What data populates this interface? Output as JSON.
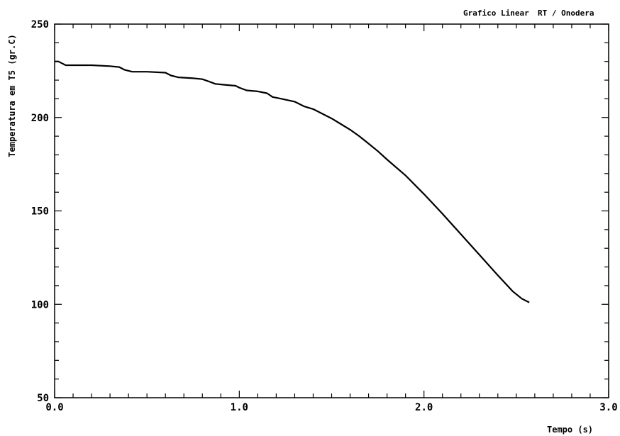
{
  "header": {
    "chart_title": "Grafico Linear",
    "author": "RT / Onodera"
  },
  "chart_data": {
    "type": "line",
    "title": "Grafico Linear",
    "xlabel": "Tempo (s)",
    "ylabel": "Temperatura em T5 (gr.C)",
    "xlim": [
      0.0,
      3.0
    ],
    "ylim": [
      50,
      250
    ],
    "x_tick_labels": [
      "0.0",
      "1.0",
      "2.0",
      "3.0"
    ],
    "y_tick_labels": [
      "50",
      "100",
      "150",
      "200",
      "250"
    ],
    "x_ticks": [
      0,
      1,
      2,
      3
    ],
    "y_ticks": [
      50,
      100,
      150,
      200,
      250
    ],
    "x_minor_step": 0.1,
    "y_minor_step": 10,
    "grid": false,
    "line_color": "#000000",
    "series": [
      {
        "x": [
          0.0,
          0.02,
          0.04,
          0.06,
          0.1,
          0.2,
          0.3,
          0.35,
          0.38,
          0.42,
          0.5,
          0.6,
          0.63,
          0.67,
          0.75,
          0.8,
          0.83,
          0.87,
          0.92,
          0.98,
          1.0,
          1.04,
          1.1,
          1.15,
          1.18,
          1.23,
          1.3,
          1.35,
          1.4,
          1.45,
          1.5,
          1.55,
          1.6,
          1.65,
          1.7,
          1.75,
          1.8,
          1.9,
          2.0,
          2.1,
          2.2,
          2.3,
          2.4,
          2.48,
          2.53,
          2.57
        ],
        "y": [
          230,
          230,
          229,
          228,
          228,
          228,
          227.5,
          227,
          225.5,
          224.5,
          224.5,
          224,
          222.5,
          221.5,
          221,
          220.5,
          219.5,
          218,
          217.5,
          217,
          216,
          214.5,
          214,
          213,
          211,
          210,
          208.5,
          206,
          204.5,
          202,
          199.5,
          196.5,
          193.5,
          190,
          186,
          182,
          177.5,
          169,
          159,
          148.5,
          137.5,
          126.5,
          115.5,
          107,
          103,
          101
        ]
      }
    ]
  }
}
